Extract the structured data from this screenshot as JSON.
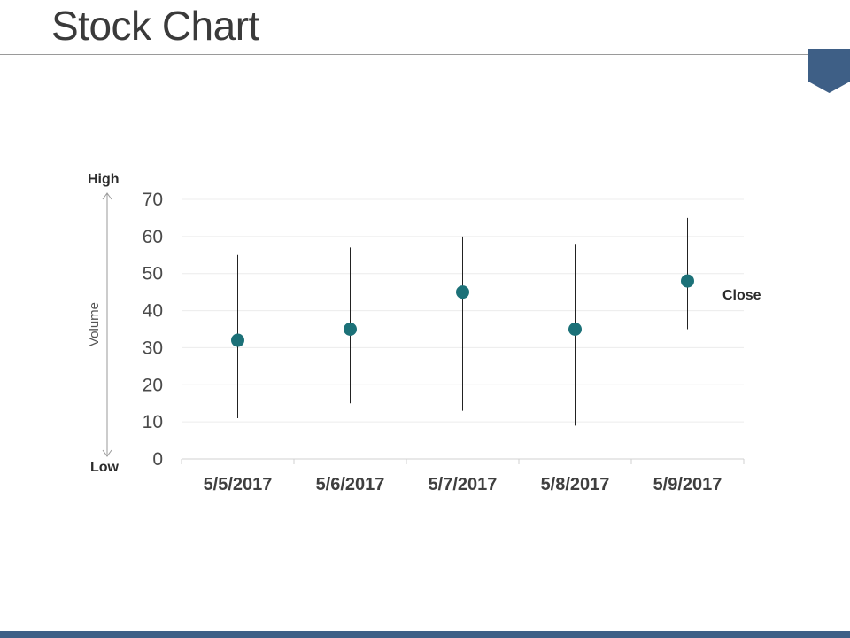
{
  "slide": {
    "title": "Stock Chart"
  },
  "colors": {
    "accent": "#3e5f86",
    "marker": "#1c7178",
    "whisker": "#222222",
    "grid": "#ececec",
    "tick_text": "#4a4a4a",
    "category_text": "#3f3f3f"
  },
  "icons": {
    "corner": "pentagon-tab-icon",
    "axis_arrow": "double-arrow-icon"
  },
  "annotations": {
    "high_label": "High",
    "low_label": "Low",
    "volume_label": "Volume",
    "close_label": "Close"
  },
  "chart_data": {
    "type": "scatter",
    "subtype": "stock-high-low-close",
    "categories": [
      "5/5/2017",
      "5/6/2017",
      "5/7/2017",
      "5/8/2017",
      "5/9/2017"
    ],
    "series": [
      {
        "name": "High",
        "values": [
          55,
          57,
          60,
          58,
          65
        ]
      },
      {
        "name": "Low",
        "values": [
          11,
          15,
          13,
          9,
          35
        ]
      },
      {
        "name": "Close",
        "values": [
          32,
          35,
          45,
          35,
          48
        ]
      }
    ],
    "ylim": [
      0,
      70
    ],
    "yticks": [
      0,
      10,
      20,
      30,
      40,
      50,
      60,
      70
    ],
    "grid": true,
    "legend": "none"
  }
}
